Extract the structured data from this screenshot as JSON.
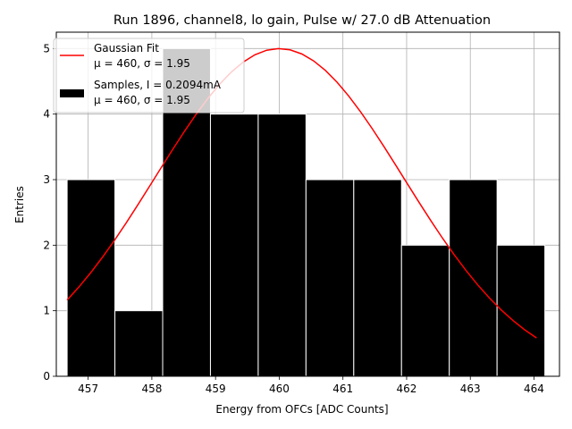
{
  "chart_data": {
    "type": "bar",
    "title": "Run 1896, channel8, lo gain, Pulse w/ 27.0 dB Attenuation",
    "xlabel": "Energy from OFCs [ADC Counts]",
    "ylabel": "Entries",
    "xlim": [
      456.5,
      464.4
    ],
    "ylim": [
      0,
      5.25
    ],
    "xticks": [
      457,
      458,
      459,
      460,
      461,
      462,
      463,
      464
    ],
    "yticks": [
      0,
      1,
      2,
      3,
      4,
      5
    ],
    "grid": true,
    "legend_position": "top-left",
    "histogram": {
      "name": "Samples, I = 0.2094mA",
      "stats": "μ = 460, σ = 1.95",
      "color": "#000000",
      "edge_color": "#ffffff",
      "bin_edges": [
        456.67,
        457.42,
        458.17,
        458.92,
        459.67,
        460.42,
        461.17,
        461.92,
        462.67,
        463.42,
        464.17
      ],
      "values": [
        3,
        1,
        5,
        4,
        4,
        3,
        3,
        2,
        3,
        2
      ]
    },
    "fit": {
      "name": "Gaussian Fit",
      "stats": "μ = 460, σ = 1.95",
      "color": "#ff0000",
      "mu": 460.0,
      "sigma": 1.95,
      "amplitude": 5.0,
      "x_range": [
        456.67,
        464.04
      ]
    }
  }
}
